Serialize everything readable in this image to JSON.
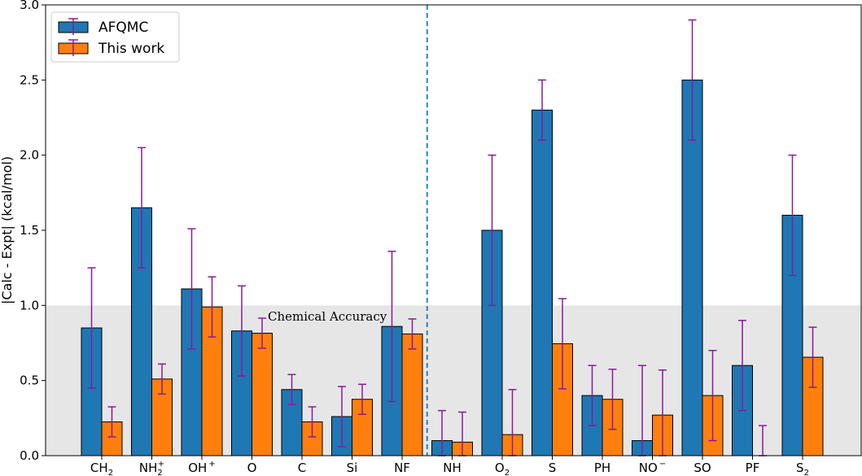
{
  "chart_data": {
    "type": "bar",
    "title": "",
    "xlabel": "",
    "ylabel": "|Calc - Expt| (kcal/mol)",
    "ylim": [
      0.0,
      3.0
    ],
    "yticks": [
      "0.0",
      "0.5",
      "1.0",
      "1.5",
      "2.0",
      "2.5",
      "3.0"
    ],
    "ytick_values": [
      0.0,
      0.5,
      1.0,
      1.5,
      2.0,
      2.5,
      3.0
    ],
    "grid": false,
    "categories": [
      "CH2",
      "NH2+",
      "OH+",
      "O",
      "C",
      "Si",
      "NF",
      "NH",
      "O2",
      "S",
      "PH",
      "NO-",
      "SO",
      "PF",
      "S2"
    ],
    "category_labels": [
      {
        "base": "CH",
        "sub": "2",
        "sup": ""
      },
      {
        "base": "NH",
        "sub": "2",
        "sup": "+"
      },
      {
        "base": "OH",
        "sub": "",
        "sup": "+"
      },
      {
        "base": "O",
        "sub": "",
        "sup": ""
      },
      {
        "base": "C",
        "sub": "",
        "sup": ""
      },
      {
        "base": "Si",
        "sub": "",
        "sup": ""
      },
      {
        "base": "NF",
        "sub": "",
        "sup": ""
      },
      {
        "base": "NH",
        "sub": "",
        "sup": ""
      },
      {
        "base": "O",
        "sub": "2",
        "sup": ""
      },
      {
        "base": "S",
        "sub": "",
        "sup": ""
      },
      {
        "base": "PH",
        "sub": "",
        "sup": ""
      },
      {
        "base": "NO",
        "sub": "",
        "sup": "−"
      },
      {
        "base": "SO",
        "sub": "",
        "sup": ""
      },
      {
        "base": "PF",
        "sub": "",
        "sup": ""
      },
      {
        "base": "S",
        "sub": "2",
        "sup": ""
      }
    ],
    "series": [
      {
        "name": "AFQMC",
        "color": "#1f77b4",
        "values": [
          0.85,
          1.65,
          1.11,
          0.83,
          0.44,
          0.26,
          0.86,
          0.1,
          1.5,
          2.3,
          0.4,
          0.1,
          2.5,
          0.6,
          1.6
        ],
        "errors": [
          0.4,
          0.4,
          0.4,
          0.3,
          0.1,
          0.2,
          0.5,
          0.2,
          0.5,
          0.2,
          0.2,
          0.5,
          0.4,
          0.3,
          0.4
        ]
      },
      {
        "name": "This work",
        "color": "#ff7f0e",
        "values": [
          0.225,
          0.51,
          0.99,
          0.815,
          0.225,
          0.375,
          0.81,
          0.09,
          0.14,
          0.745,
          0.375,
          0.27,
          0.4,
          0.0,
          0.655
        ],
        "errors": [
          0.1,
          0.1,
          0.2,
          0.1,
          0.1,
          0.1,
          0.1,
          0.2,
          0.3,
          0.3,
          0.2,
          0.3,
          0.3,
          0.2,
          0.2
        ]
      }
    ],
    "errorbar_color": "#8b1a9b",
    "shaded_region": {
      "from": 0.0,
      "to": 1.0,
      "color": "#e6e6e6"
    },
    "annotation": "Chemical Accuracy",
    "divider_after_category": "NF",
    "divider_color": "#2a86b8",
    "legend_position": "top-left"
  }
}
